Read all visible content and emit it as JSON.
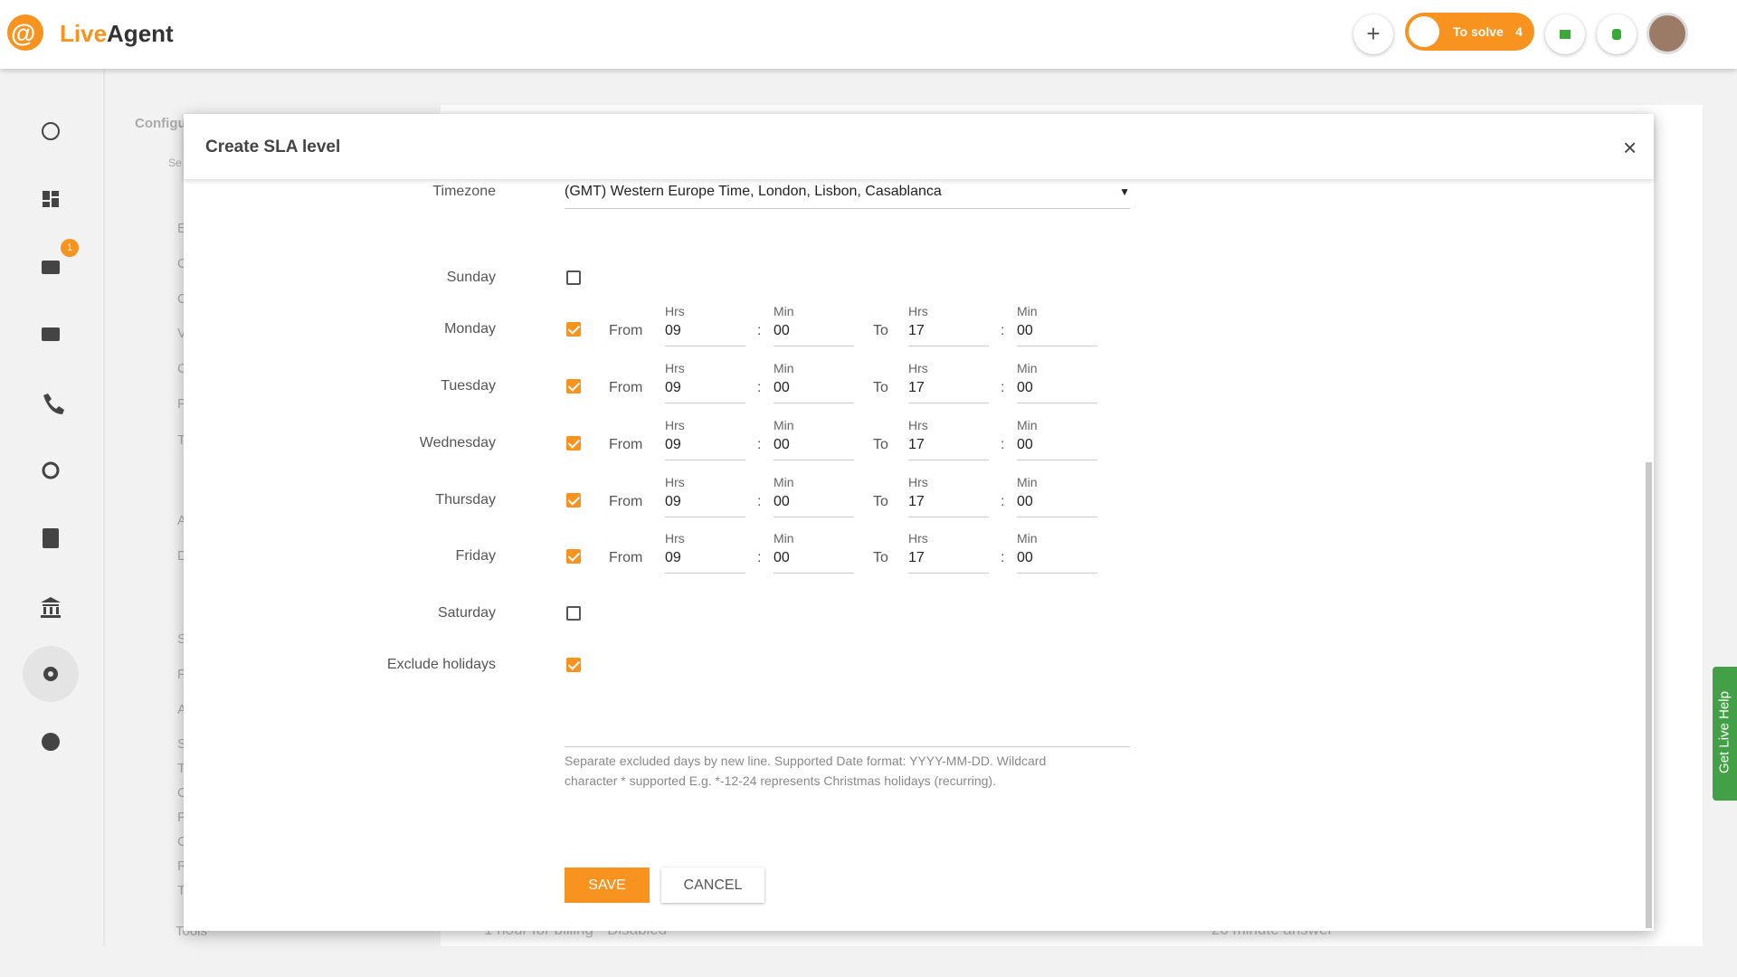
{
  "header": {
    "logo_live": "Live",
    "logo_agent": "Agent",
    "to_solve": "To solve",
    "to_solve_count": "4"
  },
  "sidebar": {
    "email_badge": "1"
  },
  "background": {
    "section_title": "Configu",
    "search_placeholder": "Se",
    "nav_letters": [
      "E",
      "C",
      "C",
      "V",
      "C",
      "F",
      "T",
      "A",
      "D",
      "S",
      "P",
      "A",
      "S",
      "T",
      "C",
      "P",
      "C",
      "R",
      "T"
    ],
    "tools": "Tools",
    "row_text": "1 hour for billing - Disabled",
    "row_text_2": "20 minute answer"
  },
  "dialog": {
    "title": "Create SLA level",
    "timezone_label": "Timezone",
    "timezone_value": "(GMT) Western Europe Time, London, Lisbon, Casablanca",
    "from_label": "From",
    "to_label": "To",
    "hrs_label": "Hrs",
    "min_label": "Min",
    "separator": ":",
    "days": [
      {
        "name": "Sunday",
        "checked": false
      },
      {
        "name": "Monday",
        "checked": true,
        "from_hrs": "09",
        "from_min": "00",
        "to_hrs": "17",
        "to_min": "00"
      },
      {
        "name": "Tuesday",
        "checked": true,
        "from_hrs": "09",
        "from_min": "00",
        "to_hrs": "17",
        "to_min": "00"
      },
      {
        "name": "Wednesday",
        "checked": true,
        "from_hrs": "09",
        "from_min": "00",
        "to_hrs": "17",
        "to_min": "00"
      },
      {
        "name": "Thursday",
        "checked": true,
        "from_hrs": "09",
        "from_min": "00",
        "to_hrs": "17",
        "to_min": "00"
      },
      {
        "name": "Friday",
        "checked": true,
        "from_hrs": "09",
        "from_min": "00",
        "to_hrs": "17",
        "to_min": "00"
      },
      {
        "name": "Saturday",
        "checked": false
      }
    ],
    "exclude_holidays_label": "Exclude holidays",
    "exclude_holidays_checked": true,
    "holidays_hint": "Separate excluded days by new line. Supported Date format: YYYY-MM-DD. Wildcard character * supported E.g. *-12-24 represents Christmas holidays (recurring).",
    "save": "SAVE",
    "cancel": "CANCEL"
  },
  "help_tab": "Get Live Help"
}
